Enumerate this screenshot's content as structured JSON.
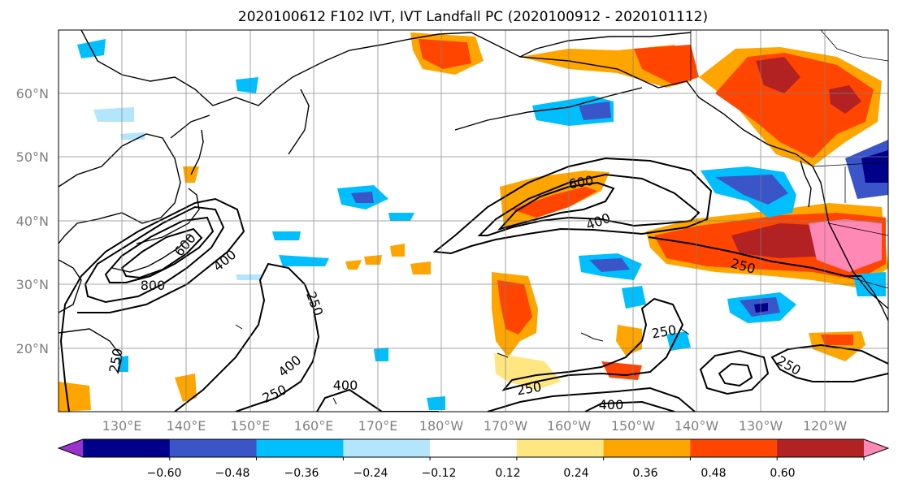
{
  "title": "2020100612 F102 IVT, IVT Landfall PC (2020100912 - 2020101112)",
  "map": {
    "lat_labels": [
      "60°N",
      "50°N",
      "40°N",
      "30°N",
      "20°N"
    ],
    "lon_labels": [
      "130°E",
      "140°E",
      "150°E",
      "160°E",
      "170°E",
      "180°W",
      "170°W",
      "160°W",
      "150°W",
      "140°W",
      "130°W",
      "120°W"
    ],
    "grid": true,
    "contour_labels": [
      "600",
      "400",
      "800",
      "250",
      "600",
      "400",
      "250",
      "250",
      "400",
      "250",
      "400",
      "250",
      "250",
      "400",
      "250",
      "250"
    ]
  },
  "colorbar": {
    "ticks": [
      "−0.60",
      "−0.48",
      "−0.36",
      "−0.24",
      "−0.12",
      "0.12",
      "0.24",
      "0.36",
      "0.48",
      "0.60"
    ],
    "colors": [
      "#9933cc",
      "#00008b",
      "#3a55c8",
      "#00bfff",
      "#b3e5fc",
      "#ffffff",
      "#ffe680",
      "#ffa500",
      "#ff4500",
      "#b22222",
      "#ff88b4"
    ],
    "extend": "both"
  }
}
